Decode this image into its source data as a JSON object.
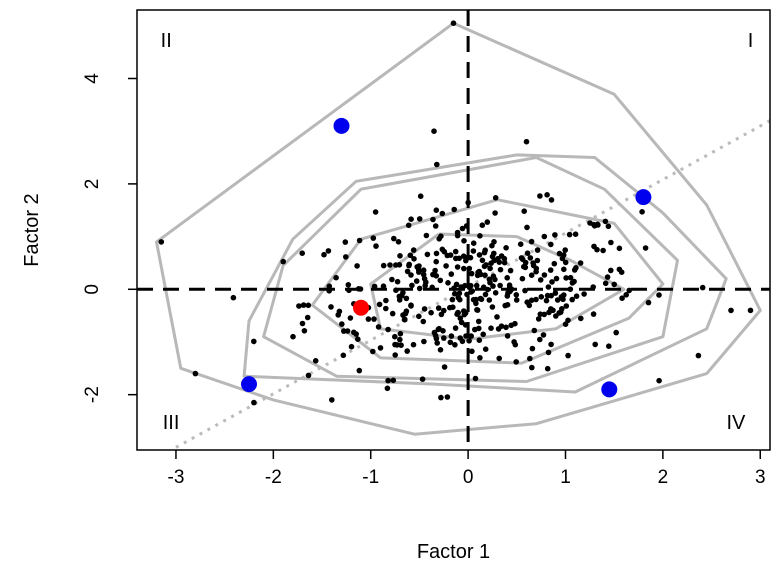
{
  "chart_data": {
    "type": "scatter",
    "xlabel": "Factor 1",
    "ylabel": "Factor 2",
    "xlim": [
      -3.4,
      3.1
    ],
    "ylim": [
      -3.05,
      5.3
    ],
    "xticks": [
      "-3",
      "-2",
      "-1",
      "0",
      "1",
      "2",
      "3"
    ],
    "xtick_values": [
      -3,
      -2,
      -1,
      0,
      1,
      2,
      3
    ],
    "yticks": [
      "-2",
      "0",
      "2",
      "4"
    ],
    "ytick_values": [
      -2,
      0,
      2,
      4
    ],
    "grid": false,
    "quadrant_labels": [
      {
        "text": "I",
        "x": 2.9,
        "y": 4.6
      },
      {
        "text": "II",
        "x": -3.1,
        "y": 4.6
      },
      {
        "text": "III",
        "x": -3.05,
        "y": -2.65
      },
      {
        "text": "IV",
        "x": 2.75,
        "y": -2.65
      }
    ],
    "reference_lines": {
      "vertical_x": 0,
      "horizontal_y": 0,
      "style": "dashed",
      "color": "#000000"
    },
    "diagonal_line": {
      "x": [
        -3.0,
        3.1
      ],
      "y": [
        -3.0,
        3.2
      ],
      "style": "dotted",
      "color": "#bbbbbb"
    },
    "contours": [
      {
        "color": "#b8b8b8",
        "points": [
          [
            -0.15,
            5.05
          ],
          [
            1.5,
            3.7
          ],
          [
            2.45,
            1.6
          ],
          [
            3.0,
            -0.4
          ],
          [
            2.45,
            -1.6
          ],
          [
            0.7,
            -2.55
          ],
          [
            -0.55,
            -2.75
          ],
          [
            -2.0,
            -2.1
          ],
          [
            -2.95,
            -1.5
          ],
          [
            -3.2,
            0.9
          ],
          [
            -0.15,
            5.05
          ]
        ]
      },
      {
        "color": "#b8b8b8",
        "points": [
          [
            0.5,
            2.55
          ],
          [
            1.3,
            2.5
          ],
          [
            2.0,
            1.45
          ],
          [
            2.65,
            0.2
          ],
          [
            2.45,
            -0.75
          ],
          [
            1.1,
            -1.95
          ],
          [
            -0.35,
            -1.8
          ],
          [
            -2.3,
            -1.65
          ],
          [
            -2.25,
            -0.6
          ],
          [
            -1.8,
            0.95
          ],
          [
            -1.15,
            2.05
          ],
          [
            0.5,
            2.55
          ]
        ]
      },
      {
        "color": "#b8b8b8",
        "points": [
          [
            0.7,
            2.5
          ],
          [
            1.4,
            1.9
          ],
          [
            2.15,
            0.55
          ],
          [
            2.0,
            -0.9
          ],
          [
            0.6,
            -1.75
          ],
          [
            -1.35,
            -1.65
          ],
          [
            -2.1,
            -0.9
          ],
          [
            -1.9,
            0.45
          ],
          [
            -1.1,
            1.9
          ],
          [
            0.7,
            2.5
          ]
        ]
      },
      {
        "color": "#b8b8b8",
        "points": [
          [
            0.3,
            1.7
          ],
          [
            1.5,
            1.25
          ],
          [
            2.0,
            0.1
          ],
          [
            1.65,
            -0.55
          ],
          [
            0.55,
            -1.4
          ],
          [
            -0.9,
            -1.3
          ],
          [
            -1.6,
            -0.3
          ],
          [
            -1.1,
            0.95
          ],
          [
            0.3,
            1.7
          ]
        ]
      },
      {
        "color": "#b8b8b8",
        "points": [
          [
            -0.3,
            1.05
          ],
          [
            0.5,
            1.0
          ],
          [
            1.05,
            0.55
          ],
          [
            1.6,
            0.0
          ],
          [
            0.9,
            -0.75
          ],
          [
            0.0,
            -0.95
          ],
          [
            -0.9,
            -0.75
          ],
          [
            -1.0,
            0.1
          ],
          [
            -0.3,
            1.05
          ]
        ]
      }
    ],
    "series": [
      {
        "marker": "small-dot",
        "color": "#000000"
      },
      {
        "marker": "large-dot",
        "color": "#0000ee",
        "x": [
          -1.3,
          1.8,
          -2.25,
          1.45
        ],
        "y": [
          3.1,
          1.75,
          -1.8,
          -1.9
        ]
      },
      {
        "marker": "large-dot",
        "color": "#ff0000",
        "x": [
          -1.1
        ],
        "y": [
          -0.35
        ]
      }
    ]
  }
}
